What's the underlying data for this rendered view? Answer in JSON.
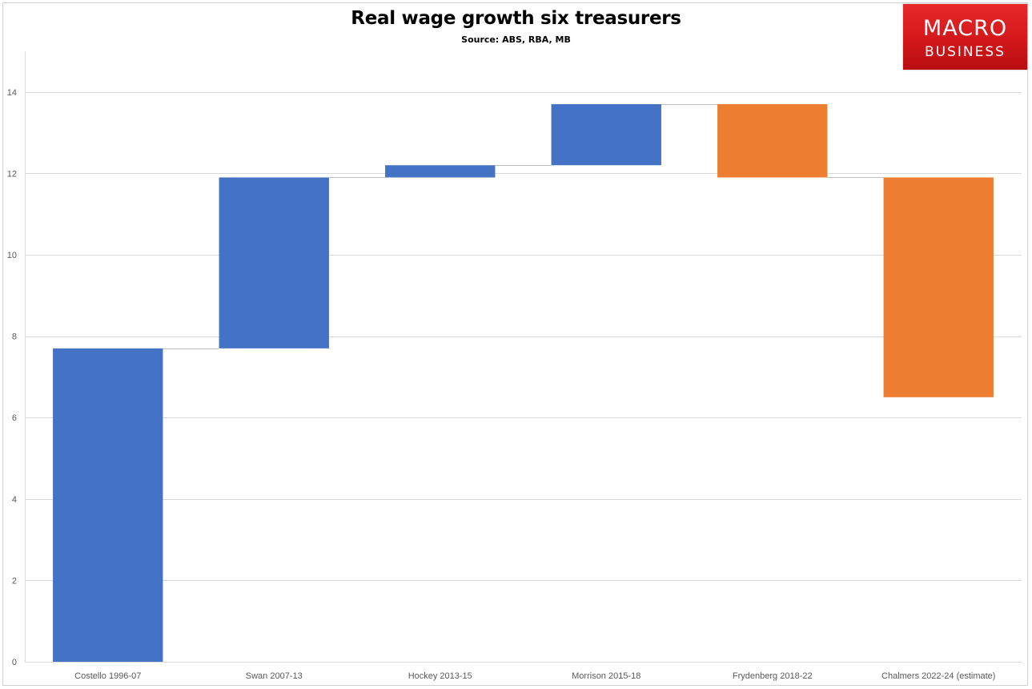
{
  "title": "Real wage growth six treasurers",
  "subtitle": "Source: ABS, RBA, MB",
  "logo": {
    "line1": "MACRO",
    "line2": "BUSINESS"
  },
  "chart_data": {
    "type": "bar",
    "subtype": "waterfall",
    "categories": [
      "Costello 1996-07",
      "Swan 2007-13",
      "Hockey 2013-15",
      "Morrison 2015-18",
      "Frydenberg 2018-22",
      "Chalmers 2022-24 (estimate)"
    ],
    "bars": [
      {
        "from": 0,
        "to": 7.7,
        "direction": "increase"
      },
      {
        "from": 7.7,
        "to": 11.9,
        "direction": "increase"
      },
      {
        "from": 11.9,
        "to": 12.2,
        "direction": "increase"
      },
      {
        "from": 12.2,
        "to": 13.7,
        "direction": "increase"
      },
      {
        "from": 13.7,
        "to": 11.9,
        "direction": "decrease"
      },
      {
        "from": 11.9,
        "to": 6.5,
        "direction": "decrease"
      }
    ],
    "colors": {
      "increase": "#4472c4",
      "decrease": "#ed7d31",
      "grid": "#d9d9d9",
      "connector": "#bfbfbf"
    },
    "yticks": [
      0,
      2,
      4,
      6,
      8,
      10,
      12,
      14
    ],
    "ylim": [
      0,
      15
    ],
    "grid": true,
    "legend": "none"
  }
}
